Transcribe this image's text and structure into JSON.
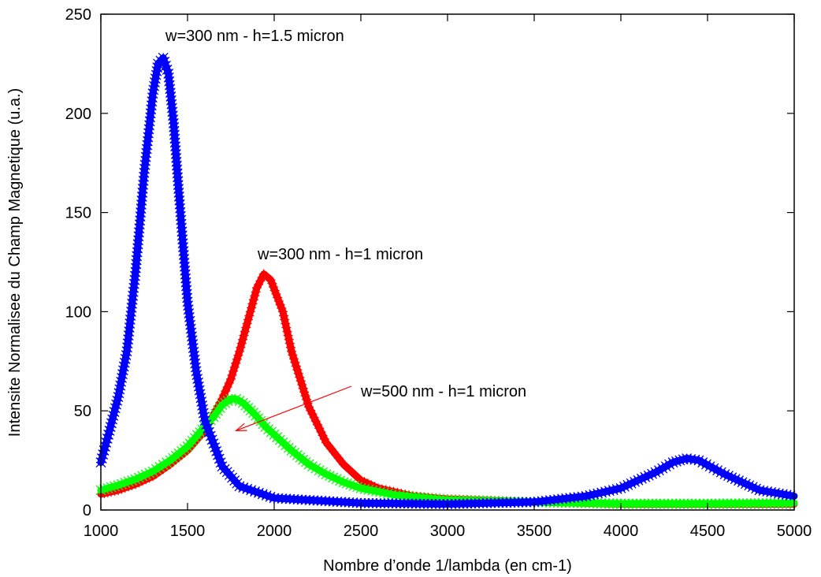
{
  "chart_data": {
    "type": "scatter",
    "title": "",
    "xlabel": "Nombre d’onde 1/lambda (en cm-1)",
    "ylabel": "Intensite Normalisee du Champ Magnetique (u.a.)",
    "xlim": [
      1000,
      5000
    ],
    "ylim": [
      0,
      250
    ],
    "xticks": [
      1000,
      1500,
      2000,
      2500,
      3000,
      3500,
      4000,
      4500,
      5000
    ],
    "yticks": [
      0,
      50,
      100,
      150,
      200,
      250
    ],
    "grid": false,
    "legend": "none",
    "series": [
      {
        "color": "#ff0000",
        "marker": "+",
        "x": [
          1000,
          1100,
          1200,
          1300,
          1400,
          1500,
          1600,
          1700,
          1750,
          1800,
          1850,
          1900,
          1940,
          1980,
          2050,
          2100,
          2200,
          2300,
          2400,
          2500,
          2600,
          2800,
          3000,
          3500,
          4000,
          4500,
          5000
        ],
        "y": [
          8,
          10,
          13,
          17,
          23,
          30,
          40,
          56,
          66,
          80,
          96,
          112,
          119,
          116,
          100,
          80,
          52,
          34,
          23,
          15,
          11,
          7,
          5.5,
          4,
          3,
          3,
          3
        ]
      },
      {
        "color": "#00ff00",
        "marker": "x",
        "x": [
          1000,
          1100,
          1200,
          1300,
          1400,
          1500,
          1600,
          1650,
          1700,
          1750,
          1780,
          1820,
          1880,
          1950,
          2000,
          2100,
          2200,
          2300,
          2400,
          2500,
          2700,
          3000,
          3500,
          4000,
          4500,
          5000
        ],
        "y": [
          10,
          12.5,
          15.5,
          19.5,
          25,
          32,
          42,
          47,
          53,
          56,
          56,
          54,
          49,
          42,
          38,
          30,
          23,
          18,
          14,
          11,
          7.5,
          5,
          4,
          3.2,
          3.2,
          3.5
        ]
      },
      {
        "color": "#0000ff",
        "marker": "*",
        "x": [
          1000,
          1050,
          1100,
          1150,
          1200,
          1250,
          1300,
          1330,
          1360,
          1390,
          1420,
          1450,
          1500,
          1550,
          1600,
          1700,
          1800,
          2000,
          2500,
          3000,
          3500,
          3800,
          4000,
          4200,
          4300,
          4380,
          4450,
          4600,
          4800,
          5000
        ],
        "y": [
          24,
          40,
          57,
          80,
          120,
          170,
          210,
          225,
          228,
          220,
          195,
          160,
          105,
          70,
          45,
          22,
          12,
          6,
          3.5,
          3,
          4,
          7,
          11,
          19,
          24,
          26,
          25,
          18,
          10,
          7
        ]
      }
    ],
    "annotations": [
      {
        "text": "w=300 nm - h=1.5 micron"
      },
      {
        "text": "w=300 nm - h=1 micron"
      },
      {
        "text": "w=500 nm - h=1 micron",
        "arrow_to": [
          1780,
          40
        ]
      }
    ]
  }
}
